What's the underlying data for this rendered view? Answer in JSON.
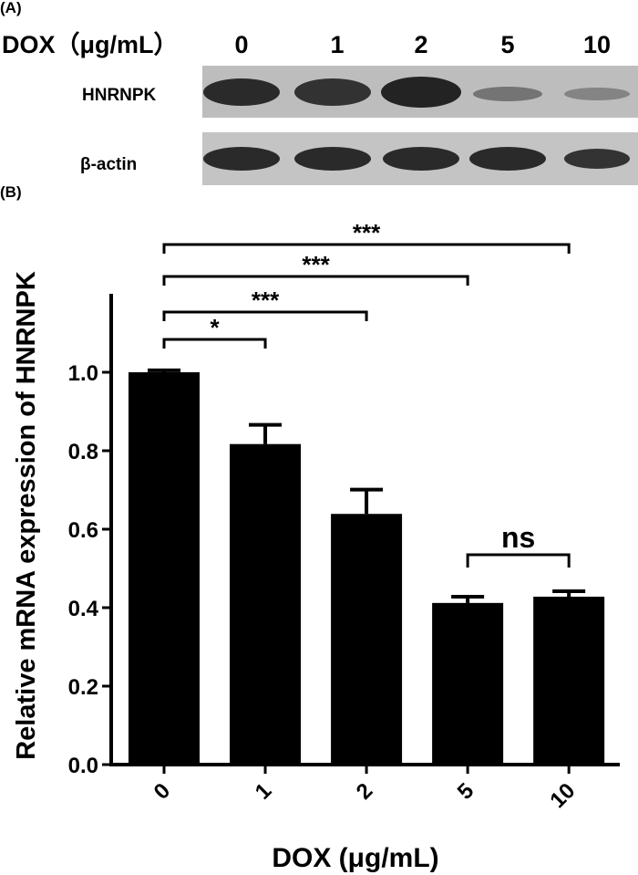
{
  "panel_a": {
    "label": "(A)",
    "dose_title": "DOX（μg/mL）",
    "doses": [
      "0",
      "1",
      "2",
      "5",
      "10"
    ],
    "rows": [
      "HNRNPK",
      "β-actin"
    ]
  },
  "chart_data": {
    "type": "bar",
    "panel_label": "(B)",
    "y_label": "Relative mRNA expression of HNRNPK",
    "x_label": "DOX (μg/mL)",
    "categories": [
      "0",
      "1",
      "2",
      "5",
      "10"
    ],
    "values": [
      1.0,
      0.817,
      0.639,
      0.412,
      0.428
    ],
    "errors": [
      0.005,
      0.049,
      0.062,
      0.016,
      0.014
    ],
    "color": "#000000",
    "ylim": [
      0,
      1.2
    ],
    "yticks": [
      {
        "value": 0,
        "label": "0.0"
      },
      0.2,
      0.4,
      0.6,
      0.8,
      {
        "value": 1,
        "label": "1.0"
      }
    ],
    "significance": [
      {
        "groups": [
          "0",
          "1"
        ],
        "label": "*"
      },
      {
        "groups": [
          "0",
          "2"
        ],
        "label": "***"
      },
      {
        "groups": [
          "0",
          "5"
        ],
        "label": "***"
      },
      {
        "groups": [
          "0",
          "10"
        ],
        "label": "***"
      },
      {
        "groups": [
          "5",
          "10"
        ],
        "label": "ns"
      }
    ]
  }
}
